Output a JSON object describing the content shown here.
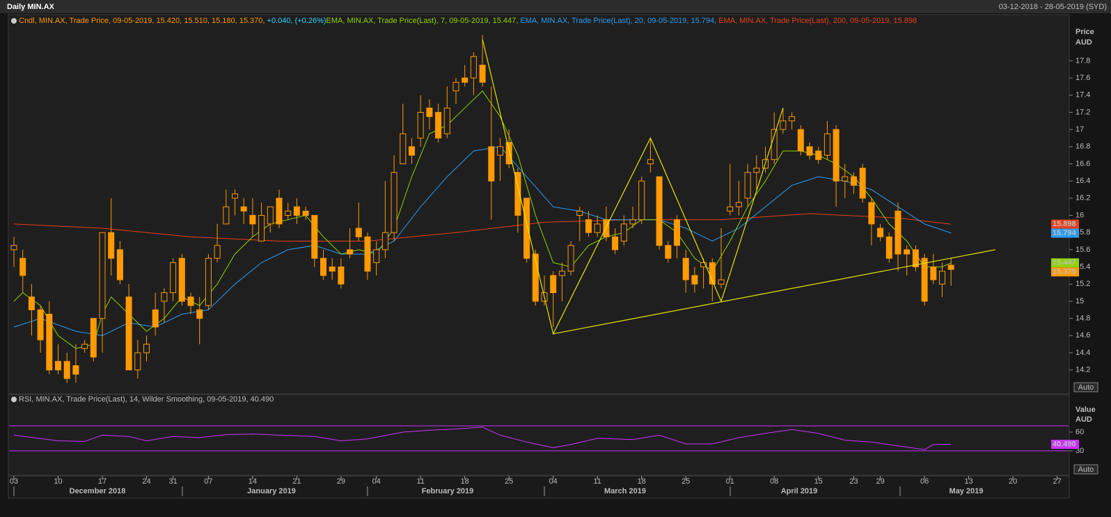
{
  "chart_data": [
    {
      "type": "candlestick",
      "title": "Daily MIN.AX",
      "subtitle": "03-12-2018 - 28-05-2019 (SYD)",
      "legend": [
        {
          "text": "Cndl, MIN.AX, Trade Price, 09-05-2019, 15.420, 15.510, 15.180, 15.370, ",
          "color": "#ff9a00"
        },
        {
          "text": "+0.040, (+0.26%)",
          "color": "#33d6ff"
        },
        {
          "text": "EMA, MIN.AX, Trade Price(Last),  7, 09-05-2019, 15.447, ",
          "color": "#8fd400"
        },
        {
          "text": "EMA, MIN.AX, Trade Price(Last),  20, 09-05-2019, 15.794, ",
          "color": "#2a9df4"
        },
        {
          "text": "EMA, MIN.AX, Trade Price(Last),  200, 09-05-2019, 15.898",
          "color": "#e8401c"
        }
      ],
      "axis_label": [
        "Price",
        "AUD"
      ],
      "scale_mode": "Auto",
      "color": "#ff9a00",
      "tag": {
        "value": 15.37,
        "label": "15.370"
      },
      "open": [
        15.6,
        15.5,
        15.05,
        14.9,
        14.85,
        14.3,
        14.3,
        14.25,
        14.45,
        14.8,
        14.8,
        15.8,
        15.6,
        15.05,
        14.2,
        14.4,
        14.9,
        15.0,
        15.1,
        15.5,
        15.05,
        14.9,
        14.95,
        15.5,
        15.9,
        16.2,
        16.1,
        16.0,
        15.7,
        15.9,
        16.2,
        16.0,
        16.1,
        16.05,
        16.0,
        15.5,
        15.4,
        15.4,
        15.6,
        15.85,
        15.75,
        15.45,
        15.6,
        15.8,
        16.6,
        16.8,
        16.9,
        17.25,
        17.2,
        16.95,
        17.45,
        17.6,
        17.6,
        17.75,
        16.8,
        16.7,
        16.85,
        16.5,
        16.2,
        15.55,
        15.0,
        15.3,
        15.3,
        15.35,
        16.0,
        15.95,
        15.8,
        15.95,
        15.75,
        15.7,
        15.9,
        15.95,
        16.6,
        16.45,
        15.65,
        15.95,
        15.5,
        15.3,
        15.4,
        15.45,
        15.2,
        16.05,
        16.1,
        16.2,
        16.5,
        16.55,
        16.65,
        17.0,
        17.1,
        17.0,
        16.8,
        16.75,
        16.7,
        17.0,
        16.4,
        16.45,
        16.55,
        16.15,
        15.85,
        15.75,
        16.05,
        15.6,
        15.6,
        15.5,
        15.4,
        15.2,
        15.42
      ],
      "high": [
        15.75,
        15.6,
        15.2,
        14.95,
        15.0,
        14.5,
        14.4,
        14.5,
        14.55,
        14.8,
        15.8,
        16.2,
        15.7,
        15.2,
        14.55,
        14.6,
        15.1,
        15.15,
        15.5,
        15.55,
        15.1,
        15.05,
        15.55,
        15.9,
        16.3,
        16.3,
        16.2,
        16.2,
        16.15,
        16.1,
        16.3,
        16.15,
        16.2,
        16.1,
        16.0,
        15.6,
        15.5,
        15.5,
        15.85,
        16.15,
        15.8,
        15.7,
        16.4,
        16.7,
        17.3,
        16.9,
        17.4,
        17.35,
        17.3,
        17.5,
        17.6,
        17.75,
        17.9,
        18.1,
        17.5,
        16.9,
        17.0,
        16.55,
        16.2,
        15.6,
        15.3,
        15.35,
        15.45,
        15.7,
        16.1,
        16.05,
        16.0,
        16.1,
        15.85,
        16.0,
        16.1,
        16.45,
        16.9,
        16.45,
        15.7,
        16.0,
        15.6,
        15.4,
        15.5,
        15.5,
        15.85,
        16.6,
        16.4,
        16.6,
        16.7,
        16.8,
        17.2,
        17.25,
        17.2,
        17.05,
        16.85,
        16.8,
        17.1,
        17.05,
        16.6,
        16.5,
        16.6,
        16.2,
        15.9,
        15.8,
        16.15,
        15.65,
        15.65,
        15.55,
        15.55,
        15.45,
        15.51
      ],
      "low": [
        15.4,
        15.1,
        14.6,
        14.4,
        14.15,
        14.15,
        14.05,
        14.05,
        14.4,
        14.3,
        14.4,
        15.3,
        15.2,
        14.2,
        14.1,
        14.3,
        14.6,
        14.75,
        15.0,
        14.95,
        14.85,
        14.5,
        14.9,
        15.45,
        15.9,
        16.0,
        15.9,
        15.75,
        15.7,
        15.8,
        15.85,
        15.95,
        15.9,
        15.95,
        15.4,
        15.25,
        15.25,
        15.15,
        15.5,
        15.7,
        15.25,
        15.3,
        15.5,
        15.7,
        16.6,
        16.6,
        16.8,
        17.0,
        16.85,
        16.9,
        17.3,
        17.5,
        17.4,
        17.5,
        15.95,
        16.4,
        16.55,
        15.8,
        15.45,
        14.95,
        14.95,
        14.7,
        15.0,
        15.3,
        15.7,
        15.75,
        15.75,
        15.7,
        15.55,
        15.65,
        15.85,
        15.9,
        16.5,
        15.6,
        15.45,
        15.5,
        15.1,
        15.1,
        15.15,
        15.0,
        15.15,
        16.0,
        16.0,
        16.1,
        16.3,
        16.5,
        16.6,
        16.95,
        17.0,
        16.7,
        16.65,
        16.6,
        16.65,
        16.1,
        16.2,
        16.25,
        16.15,
        15.65,
        15.7,
        15.45,
        15.35,
        15.3,
        15.35,
        14.95,
        15.2,
        15.05,
        15.18
      ],
      "close": [
        15.65,
        15.3,
        14.9,
        14.55,
        14.2,
        14.2,
        14.1,
        14.15,
        14.5,
        14.35,
        15.8,
        15.5,
        15.25,
        14.2,
        14.4,
        14.5,
        14.7,
        15.1,
        15.45,
        15.0,
        14.95,
        14.8,
        15.5,
        15.65,
        16.1,
        16.25,
        16.05,
        15.9,
        16.0,
        16.1,
        15.9,
        16.05,
        16.0,
        16.0,
        15.5,
        15.3,
        15.35,
        15.2,
        15.55,
        15.75,
        15.35,
        15.6,
        15.8,
        16.5,
        16.95,
        16.7,
        17.2,
        17.15,
        16.9,
        17.25,
        17.55,
        17.55,
        17.85,
        17.55,
        16.4,
        16.8,
        16.6,
        16.0,
        15.5,
        15.0,
        15.1,
        15.1,
        15.35,
        15.65,
        16.05,
        15.8,
        15.9,
        15.75,
        15.6,
        15.9,
        15.95,
        16.4,
        16.65,
        15.65,
        15.5,
        15.65,
        15.25,
        15.2,
        15.45,
        15.2,
        15.25,
        16.1,
        16.15,
        16.5,
        16.55,
        16.65,
        17.0,
        17.1,
        17.15,
        16.75,
        16.7,
        16.65,
        16.95,
        16.4,
        16.45,
        16.35,
        16.2,
        15.9,
        15.75,
        15.5,
        15.55,
        15.55,
        15.4,
        15.0,
        15.25,
        15.35,
        15.37
      ],
      "series": [
        {
          "name": "EMA 200",
          "color": "#e8401c",
          "tag": {
            "value": 15.898,
            "label": "15.898"
          },
          "x": [
            0,
            10,
            20,
            30,
            40,
            50,
            60,
            70,
            80,
            90,
            100,
            106
          ],
          "values": [
            15.9,
            15.85,
            15.75,
            15.7,
            15.7,
            15.8,
            15.92,
            15.95,
            15.95,
            16.02,
            15.97,
            15.898
          ]
        },
        {
          "name": "EMA 20",
          "color": "#2a9df4",
          "tag": {
            "value": 15.794,
            "label": "15.794"
          },
          "x": [
            0,
            3,
            7,
            10,
            13,
            16,
            19,
            22,
            25,
            28,
            31,
            34,
            37,
            40,
            43,
            46,
            49,
            52,
            55,
            58,
            61,
            64,
            67,
            70,
            73,
            76,
            79,
            82,
            85,
            88,
            91,
            94,
            97,
            100,
            103,
            106
          ],
          "values": [
            14.7,
            14.8,
            14.65,
            14.6,
            14.75,
            14.7,
            14.85,
            14.9,
            15.2,
            15.45,
            15.6,
            15.65,
            15.55,
            15.55,
            15.7,
            16.1,
            16.45,
            16.75,
            16.8,
            16.45,
            16.1,
            16.05,
            15.95,
            15.95,
            15.95,
            15.85,
            15.7,
            15.85,
            16.1,
            16.35,
            16.45,
            16.4,
            16.3,
            16.1,
            15.9,
            15.794
          ]
        },
        {
          "name": "EMA 7",
          "color": "#8fd400",
          "tag": {
            "value": 15.447,
            "label": "15.447"
          },
          "x": [
            0,
            1,
            3,
            5,
            7,
            9,
            10,
            11,
            13,
            15,
            17,
            19,
            21,
            23,
            25,
            27,
            29,
            31,
            33,
            35,
            37,
            39,
            41,
            43,
            45,
            47,
            49,
            51,
            53,
            55,
            57,
            59,
            61,
            63,
            65,
            67,
            69,
            71,
            73,
            75,
            77,
            79,
            81,
            83,
            85,
            87,
            89,
            91,
            93,
            95,
            97,
            99,
            101,
            103,
            105,
            106
          ],
          "values": [
            15.0,
            15.1,
            14.95,
            14.6,
            14.45,
            14.5,
            14.85,
            15.05,
            14.85,
            14.65,
            14.8,
            15.05,
            14.95,
            15.2,
            15.55,
            15.75,
            15.9,
            15.95,
            16.0,
            15.75,
            15.55,
            15.6,
            15.55,
            15.85,
            16.45,
            16.95,
            17.05,
            17.25,
            17.45,
            17.15,
            16.7,
            16.0,
            15.45,
            15.4,
            15.65,
            15.75,
            15.8,
            15.95,
            15.95,
            15.8,
            15.5,
            15.35,
            15.7,
            16.1,
            16.4,
            16.75,
            16.75,
            16.7,
            16.6,
            16.45,
            16.2,
            15.9,
            15.7,
            15.4,
            15.4,
            15.447
          ]
        }
      ],
      "annotations": [
        {
          "color": "#e6e600",
          "x": [
            53,
            61,
            72,
            80,
            87
          ],
          "values": [
            18.05,
            14.62,
            16.9,
            15.0,
            17.25
          ]
        },
        {
          "color": "#e6e600",
          "x": [
            61,
            111
          ],
          "values": [
            14.62,
            15.6
          ]
        }
      ],
      "ylim": [
        13.93,
        18.2
      ],
      "yticks": [
        14.2,
        14.4,
        14.6,
        14.8,
        15,
        15.2,
        15.4,
        15.6,
        15.8,
        16,
        16.2,
        16.4,
        16.6,
        16.8,
        17,
        17.2,
        17.4,
        17.6,
        17.8
      ],
      "xticks": [
        {
          "value": 0,
          "label": "03"
        },
        {
          "value": 5,
          "label": "10"
        },
        {
          "value": 10,
          "label": "17"
        },
        {
          "value": 15,
          "label": "24"
        },
        {
          "value": 18,
          "label": "31"
        },
        {
          "value": 22,
          "label": "07"
        },
        {
          "value": 27,
          "label": "14"
        },
        {
          "value": 32,
          "label": "21"
        },
        {
          "value": 37,
          "label": "29"
        },
        {
          "value": 41,
          "label": "04"
        },
        {
          "value": 46,
          "label": "11"
        },
        {
          "value": 51,
          "label": "18"
        },
        {
          "value": 56,
          "label": "25"
        },
        {
          "value": 61,
          "label": "04"
        },
        {
          "value": 66,
          "label": "11"
        },
        {
          "value": 71,
          "label": "18"
        },
        {
          "value": 76,
          "label": "25"
        },
        {
          "value": 81,
          "label": "01"
        },
        {
          "value": 86,
          "label": "08"
        },
        {
          "value": 91,
          "label": "15"
        },
        {
          "value": 95,
          "label": "23"
        },
        {
          "value": 98,
          "label": "29"
        },
        {
          "value": 103,
          "label": "06"
        },
        {
          "value": 108,
          "label": "13"
        },
        {
          "value": 113,
          "label": "20"
        },
        {
          "value": 118,
          "label": "27"
        }
      ],
      "months": [
        "December 2018",
        "January 2019",
        "February 2019",
        "March 2019",
        "April 2019",
        "May 2019"
      ]
    },
    {
      "type": "line",
      "legend": "RSI, MIN.AX, Trade Price(Last),  14, Wilder Smoothing, 09-05-2019, 40.490",
      "axis_label": [
        "Value",
        "AUD"
      ],
      "scale_mode": "Auto",
      "levels": [
        70,
        30
      ],
      "series": [
        {
          "name": "RSI",
          "color": "#cc33ff",
          "tag": {
            "value": 40.49,
            "label": "40.490"
          },
          "x": [
            0,
            5,
            8,
            10,
            13,
            15,
            18,
            21,
            24,
            27,
            30,
            34,
            37,
            40,
            44,
            47,
            50,
            53,
            55,
            58,
            61,
            63,
            66,
            70,
            73,
            76,
            79,
            82,
            85,
            88,
            91,
            94,
            97,
            100,
            103,
            104,
            106
          ],
          "values": [
            55,
            46,
            45,
            55,
            53,
            46,
            53,
            51,
            56,
            57,
            55,
            53,
            46,
            49,
            60,
            63,
            65,
            68,
            55,
            44,
            35,
            40,
            50,
            48,
            55,
            41,
            41,
            51,
            58,
            64,
            58,
            47,
            44,
            38,
            32,
            40,
            40.49
          ]
        }
      ],
      "ylim": [
        -9,
        120
      ],
      "yticks": [
        30,
        60
      ]
    }
  ]
}
